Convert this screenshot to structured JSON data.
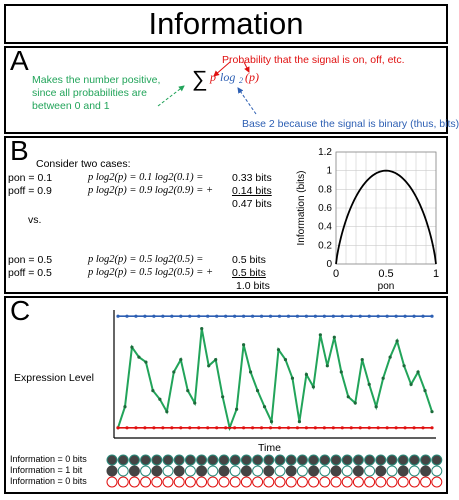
{
  "title": "Information",
  "panelA": {
    "label": "A",
    "formula_sum": "∑",
    "formula_p": "p",
    "formula_log": "log",
    "formula_sub": "2",
    "formula_arg": "(p)",
    "red_note": "Probability that the signal is on, off, etc.",
    "green_note": "Makes the number positive, since all probabilities are between 0 and 1",
    "blue_note": "Base 2 because the signal is binary (thus, bits)",
    "colors": {
      "green": "#22a45a",
      "red": "#e01010",
      "blue": "#2d5fb3"
    }
  },
  "panelB": {
    "label": "B",
    "intro": "Consider two cases:",
    "case1": {
      "row1_prob": "pon = 0.1",
      "row1_expr": "p log2(p) = 0.1 log2(0.1) =",
      "row1_val": "0.33 bits",
      "row2_prob": "poff = 0.9",
      "row2_expr": "p log2(p) = 0.9 log2(0.9) = +",
      "row2_val": "0.14 bits",
      "total": "0.47 bits"
    },
    "vs": "vs.",
    "case2": {
      "row1_prob": "pon = 0.5",
      "row1_expr": "p log2(p) = 0.5 log2(0.5) =",
      "row1_val": "0.5 bits",
      "row2_prob": "poff = 0.5",
      "row2_expr": "p log2(p) = 0.5 log2(0.5) = +",
      "row2_val": "0.5 bits",
      "total": "1.0 bits"
    },
    "chart_data": {
      "type": "line",
      "xlabel": "pon",
      "ylabel": "Information (bits)",
      "xlim": [
        0,
        1
      ],
      "ylim": [
        0,
        1.2
      ],
      "xticks": [
        "0",
        "0.5",
        "1"
      ],
      "yticks": [
        "0",
        "0.2",
        "0.4",
        "0.6",
        "0.8",
        "1",
        "1.2"
      ],
      "grid": true,
      "curve": "binary entropy, peak 1 at 0.5"
    }
  },
  "panelC": {
    "label": "C",
    "ylabel": "Expression Level",
    "xlabel": "Time",
    "chart_data": {
      "type": "line",
      "series": [
        {
          "color": "#2d5fb3",
          "values": [
            0.95,
            0.95,
            0.95,
            0.95,
            0.95,
            0.95,
            0.95,
            0.95,
            0.95,
            0.95,
            0.95,
            0.95,
            0.95,
            0.95,
            0.95,
            0.95,
            0.95,
            0.95,
            0.95,
            0.95,
            0.95,
            0.95,
            0.95,
            0.95,
            0.95,
            0.95,
            0.95,
            0.95,
            0.95,
            0.95,
            0.95,
            0.95,
            0.95,
            0.95,
            0.95,
            0.95
          ]
        },
        {
          "color": "#22a45a",
          "values": [
            0.05,
            0.22,
            0.7,
            0.62,
            0.58,
            0.35,
            0.28,
            0.18,
            0.5,
            0.6,
            0.35,
            0.25,
            0.85,
            0.55,
            0.6,
            0.3,
            0.05,
            0.2,
            0.72,
            0.5,
            0.35,
            0.22,
            0.1,
            0.68,
            0.6,
            0.45,
            0.1,
            0.48,
            0.38,
            0.8,
            0.55,
            0.78,
            0.5,
            0.3,
            0.25,
            0.6,
            0.4,
            0.22,
            0.45,
            0.62,
            0.75,
            0.55,
            0.4,
            0.5,
            0.35,
            0.18
          ]
        },
        {
          "color": "#e01010",
          "values": [
            0.05,
            0.05,
            0.05,
            0.05,
            0.05,
            0.05,
            0.05,
            0.05,
            0.05,
            0.05,
            0.05,
            0.05,
            0.05,
            0.05,
            0.05,
            0.05,
            0.05,
            0.05,
            0.05,
            0.05,
            0.05,
            0.05,
            0.05,
            0.05,
            0.05,
            0.05,
            0.05,
            0.05,
            0.05,
            0.05,
            0.05,
            0.05,
            0.05,
            0.05,
            0.05,
            0.05
          ]
        }
      ]
    },
    "rows": [
      {
        "label": "Information = 0 bits",
        "pattern": "all-filled"
      },
      {
        "label": "Information = 1 bit",
        "pattern": "alternating"
      },
      {
        "label": "Information = 0 bits",
        "pattern": "all-empty-red"
      }
    ]
  }
}
